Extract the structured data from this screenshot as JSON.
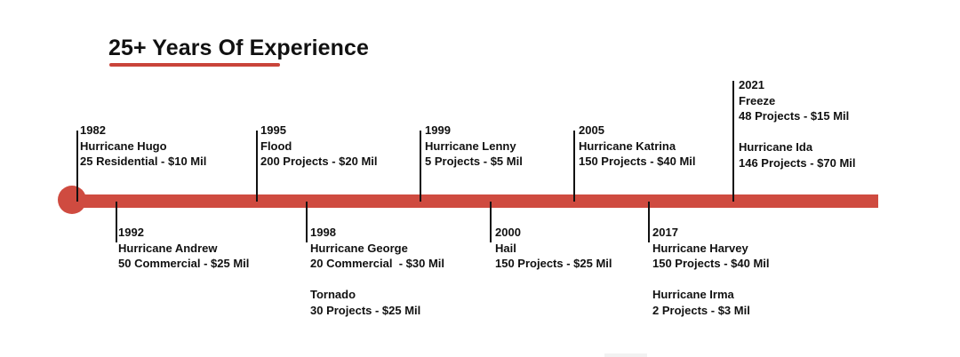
{
  "title": "25+ Years Of Experience",
  "colors": {
    "accent": "#cf4b40",
    "text": "#111111"
  },
  "events": [
    {
      "year": "1982",
      "lines": [
        "Hurricane Hugo",
        "25 Residential - $10 Mil"
      ]
    },
    {
      "year": "1992",
      "lines": [
        "Hurricane Andrew",
        "50 Commercial - $25 Mil"
      ]
    },
    {
      "year": "1995",
      "lines": [
        "Flood",
        "200 Projects - $20 Mil"
      ]
    },
    {
      "year": "1998",
      "lines": [
        "Hurricane George",
        "20 Commercial  - $30 Mil"
      ],
      "extra": [
        "Tornado",
        "30 Projects - $25 Mil"
      ]
    },
    {
      "year": "1999",
      "lines": [
        "Hurricane Lenny",
        "5 Projects - $5 Mil"
      ]
    },
    {
      "year": "2000",
      "lines": [
        "Hail",
        "150 Projects - $25 Mil"
      ]
    },
    {
      "year": "2005",
      "lines": [
        "Hurricane Katrina",
        "150 Projects - $40 Mil"
      ]
    },
    {
      "year": "2017",
      "lines": [
        "Hurricane Harvey",
        "150 Projects - $40 Mil"
      ],
      "extra": [
        "Hurricane Irma",
        "2 Projects - $3 Mil"
      ]
    },
    {
      "year": "2021",
      "lines": [
        "Freeze",
        "48 Projects - $15 Mil"
      ],
      "extra": [
        "Hurricane Ida",
        "146 Projects - $70 Mil"
      ]
    }
  ]
}
